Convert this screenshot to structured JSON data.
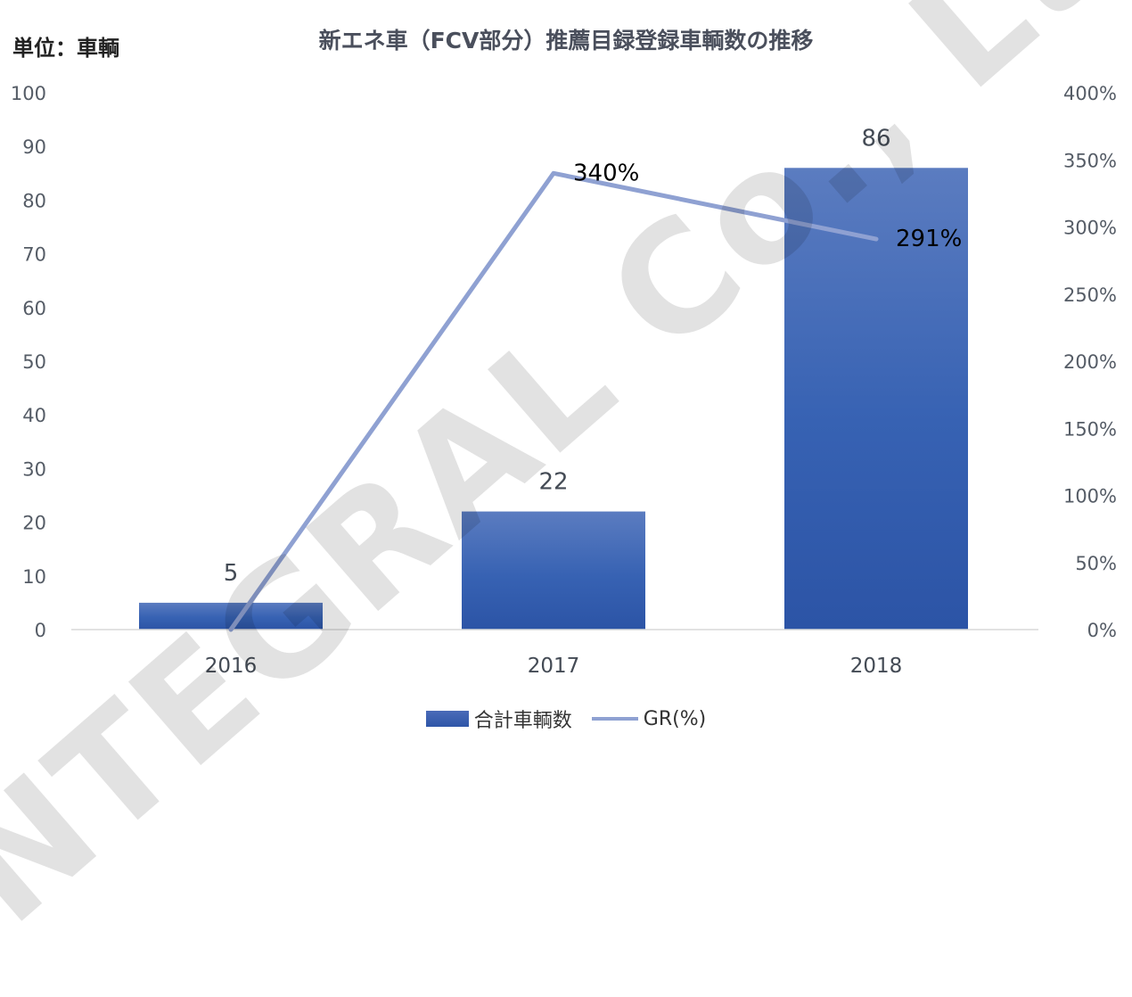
{
  "unit_label": "単位：車輌",
  "title": "新エネ車（FCV部分）推薦目録登録車輌数の推移",
  "watermark": "INTEGRAL Co., Ltd.",
  "colors": {
    "bar": "#3560b0",
    "bar_top": "#5478be",
    "line": "#8fa1d2",
    "axis_text": "#555c66",
    "title": "#4a4f5c"
  },
  "chart_data": {
    "type": "bar",
    "categories": [
      "2016",
      "2017",
      "2018"
    ],
    "series": [
      {
        "name": "合計車輌数",
        "type": "bar",
        "axis": "left",
        "values": [
          5,
          22,
          86
        ],
        "labels": [
          "5",
          "22",
          "86"
        ]
      },
      {
        "name": "GR(%)",
        "type": "line",
        "axis": "right",
        "values": [
          0,
          340,
          291
        ],
        "labels": [
          "",
          "340%",
          "291%"
        ]
      }
    ],
    "y_left": {
      "min": 0,
      "max": 100,
      "ticks": [
        "0",
        "10",
        "20",
        "30",
        "40",
        "50",
        "60",
        "70",
        "80",
        "90",
        "100"
      ]
    },
    "y_right": {
      "min": 0,
      "max": 400,
      "ticks": [
        "0%",
        "50%",
        "100%",
        "150%",
        "200%",
        "250%",
        "300%",
        "350%",
        "400%"
      ]
    },
    "grid": false,
    "legend": "bottom"
  }
}
